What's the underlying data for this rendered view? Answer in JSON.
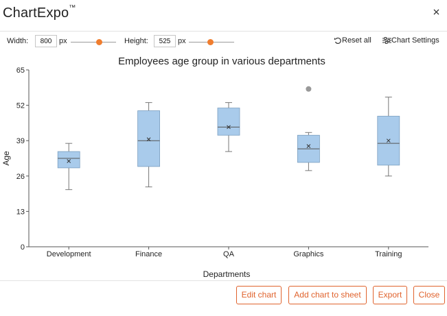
{
  "app": {
    "title": "ChartExpo",
    "trademark": "™"
  },
  "toolbar": {
    "width_label": "Width:",
    "width_value": "800",
    "width_unit": "px",
    "height_label": "Height:",
    "height_value": "525",
    "height_unit": "px",
    "reset_label": "Reset all",
    "settings_label": "Chart Settings",
    "accent_color": "#f07d2e"
  },
  "footer": {
    "edit_label": "Edit chart",
    "add_label": "Add chart to sheet",
    "export_label": "Export",
    "close_label": "Close",
    "button_color": "#e0622c"
  },
  "chart_data": {
    "type": "box",
    "title": "Employees age group in various departments",
    "xlabel": "Departments",
    "ylabel": "Age",
    "ylim": [
      0,
      65
    ],
    "yticks": [
      0,
      13,
      26,
      39,
      52,
      65
    ],
    "box_color": "#a9cbeb",
    "categories": [
      "Development",
      "Finance",
      "QA",
      "Graphics",
      "Training"
    ],
    "series": [
      {
        "category": "Development",
        "min": 21,
        "q1": 29,
        "median": 32.5,
        "q3": 35,
        "max": 38,
        "mean": 31.5,
        "outliers": []
      },
      {
        "category": "Finance",
        "min": 22,
        "q1": 29.5,
        "median": 39,
        "q3": 50,
        "max": 53,
        "mean": 39.5,
        "outliers": []
      },
      {
        "category": "QA",
        "min": 35,
        "q1": 41,
        "median": 44,
        "q3": 51,
        "max": 53,
        "mean": 44,
        "outliers": []
      },
      {
        "category": "Graphics",
        "min": 28,
        "q1": 31,
        "median": 36,
        "q3": 41,
        "max": 42,
        "mean": 37,
        "outliers": [
          58
        ]
      },
      {
        "category": "Training",
        "min": 26,
        "q1": 30,
        "median": 38,
        "q3": 48,
        "max": 55,
        "mean": 39,
        "outliers": []
      }
    ]
  }
}
